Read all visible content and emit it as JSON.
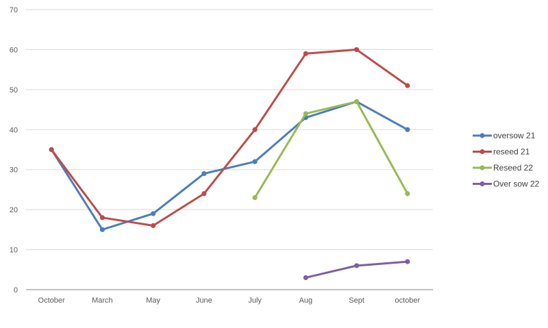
{
  "chart_data": {
    "type": "line",
    "title": "",
    "xlabel": "",
    "ylabel": "",
    "ylim": [
      0,
      70
    ],
    "yticks": [
      0,
      10,
      20,
      30,
      40,
      50,
      60,
      70
    ],
    "grid": true,
    "legend_position": "right",
    "categories": [
      "October",
      "March",
      "May",
      "June",
      "July",
      "Aug",
      "Sept",
      "october"
    ],
    "series": [
      {
        "name": "oversow 21",
        "color": "#4a7ebb",
        "values": [
          35,
          15,
          19,
          29,
          32,
          43,
          47,
          40
        ]
      },
      {
        "name": "reseed 21",
        "color": "#be4b48",
        "values": [
          35,
          18,
          16,
          24,
          40,
          59,
          60,
          51
        ]
      },
      {
        "name": "Reseed 22",
        "color": "#98b954",
        "values": [
          null,
          null,
          null,
          null,
          23,
          44,
          47,
          24
        ]
      },
      {
        "name": "Over sow  22",
        "color": "#7d60a0",
        "values": [
          null,
          null,
          null,
          null,
          null,
          3,
          6,
          7
        ]
      }
    ]
  }
}
